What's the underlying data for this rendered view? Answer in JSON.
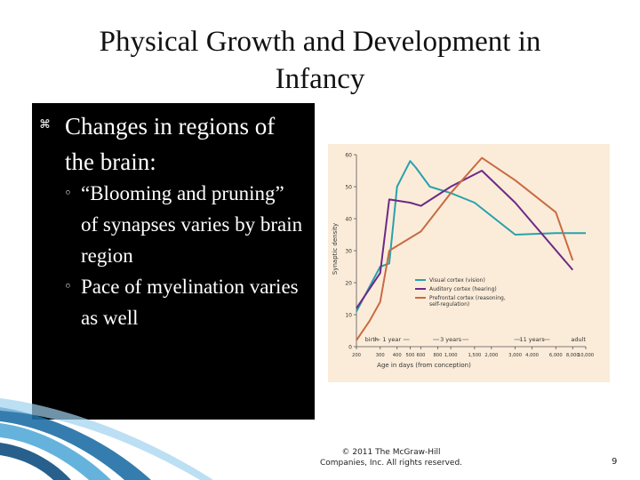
{
  "slide": {
    "title_line1": "Physical Growth and Development in",
    "title_line2": "Infancy",
    "bullet": "Changes in regions of the brain:",
    "sub_bullets": [
      "“Blooming and pruning” of synapses varies by brain region",
      "Pace of myelination varies as well"
    ],
    "copyright_line1": "© 2011 The McGraw-Hill",
    "copyright_line2": "Companies, Inc. All rights reserved.",
    "page_number": "9"
  },
  "chart_data": {
    "type": "line",
    "ylabel": "Synaptic density",
    "xlabel": "Age in days (from conception)",
    "ylim": [
      0,
      60
    ],
    "yticks": [
      0,
      10,
      20,
      30,
      40,
      50,
      60
    ],
    "x_tick_labels": [
      "200",
      "300",
      "400",
      "500",
      "600",
      "800",
      "1,000",
      "1,500",
      "2,000",
      "3,000",
      "4,000",
      "6,000",
      "8,000",
      "10,000"
    ],
    "milestones": [
      "birth",
      "1 year",
      "3 years",
      "11 years",
      "adult"
    ],
    "grid": false,
    "legend_position": "center-right",
    "background_color": "#fbecd9",
    "series": [
      {
        "name": "Visual cortex (vision)",
        "color": "#2aa1ad",
        "points": [
          [
            200,
            11
          ],
          [
            300,
            25
          ],
          [
            350,
            26
          ],
          [
            400,
            50
          ],
          [
            500,
            58
          ],
          [
            550,
            56
          ],
          [
            700,
            50
          ],
          [
            1000,
            48
          ],
          [
            1500,
            45
          ],
          [
            3000,
            35
          ],
          [
            6000,
            35.5
          ],
          [
            10000,
            35.5
          ]
        ]
      },
      {
        "name": "Auditory cortex (hearing)",
        "color": "#6c2a86",
        "points": [
          [
            200,
            12
          ],
          [
            300,
            23
          ],
          [
            350,
            46
          ],
          [
            500,
            45
          ],
          [
            600,
            44
          ],
          [
            1000,
            50
          ],
          [
            1700,
            55
          ],
          [
            3000,
            45
          ],
          [
            8000,
            24
          ]
        ]
      },
      {
        "name": "Prefrontal cortex (reasoning, self-regulation)",
        "color": "#c96a43",
        "points": [
          [
            200,
            2
          ],
          [
            250,
            8
          ],
          [
            300,
            14
          ],
          [
            350,
            30
          ],
          [
            600,
            36
          ],
          [
            1000,
            48
          ],
          [
            1700,
            59
          ],
          [
            3000,
            52
          ],
          [
            6000,
            42
          ],
          [
            8000,
            27
          ]
        ]
      }
    ]
  }
}
